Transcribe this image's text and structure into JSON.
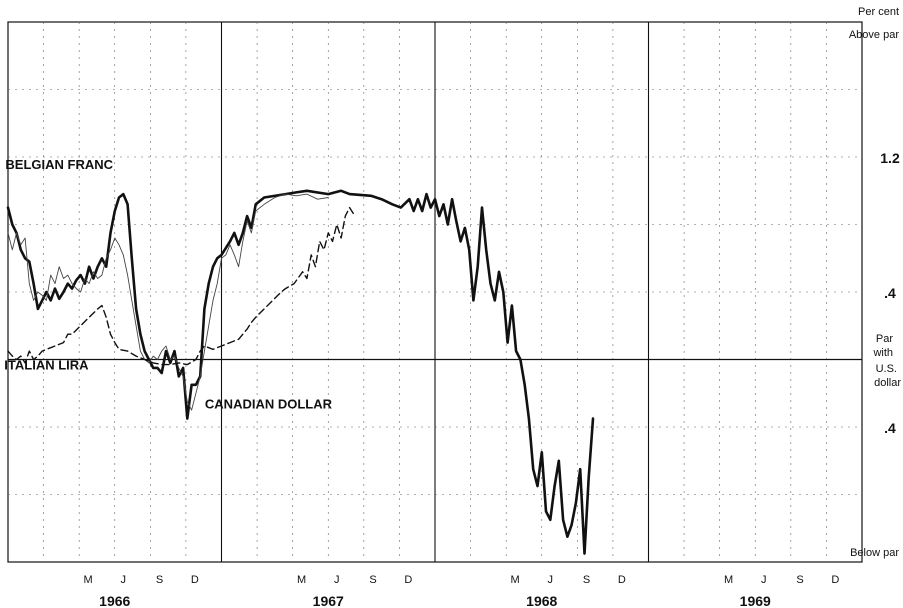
{
  "chart_data": {
    "type": "line",
    "ylabel_top": "Per cent",
    "above_label": "Above par",
    "below_label": "Below par",
    "par_label": [
      "Par",
      "with",
      "U.S.",
      "dollar"
    ],
    "y_tick_labels": [
      {
        "value": 1.2,
        "label": "1.2"
      },
      {
        "value": 0.4,
        "label": ".4"
      },
      {
        "value": -0.4,
        "label": ".4"
      }
    ],
    "ylim": [
      -1.2,
      2.0
    ],
    "xlim": [
      1966.0,
      1970.0
    ],
    "x_tick_labels": [
      {
        "x": 1966.375,
        "label": "M"
      },
      {
        "x": 1966.54,
        "label": "J"
      },
      {
        "x": 1966.71,
        "label": "S"
      },
      {
        "x": 1966.875,
        "label": "D"
      },
      {
        "x": 1967.375,
        "label": "M"
      },
      {
        "x": 1967.54,
        "label": "J"
      },
      {
        "x": 1967.71,
        "label": "S"
      },
      {
        "x": 1967.875,
        "label": "D"
      },
      {
        "x": 1968.375,
        "label": "M"
      },
      {
        "x": 1968.54,
        "label": "J"
      },
      {
        "x": 1968.71,
        "label": "S"
      },
      {
        "x": 1968.875,
        "label": "D"
      },
      {
        "x": 1969.375,
        "label": "M"
      },
      {
        "x": 1969.54,
        "label": "J"
      },
      {
        "x": 1969.71,
        "label": "S"
      },
      {
        "x": 1969.875,
        "label": "D"
      }
    ],
    "years": [
      {
        "x": 1966.5,
        "label": "1966"
      },
      {
        "x": 1967.5,
        "label": "1967"
      },
      {
        "x": 1968.5,
        "label": "1968"
      },
      {
        "x": 1969.5,
        "label": "1969"
      }
    ],
    "grid": true,
    "series": [
      {
        "name": "BELGIAN FRANC",
        "style": "thick",
        "color": "#111111",
        "label_at": {
          "x": 1966.24,
          "y": 1.13
        },
        "points": [
          [
            1966.0,
            0.9
          ],
          [
            1966.02,
            0.8
          ],
          [
            1966.04,
            0.75
          ],
          [
            1966.06,
            0.65
          ],
          [
            1966.08,
            0.6
          ],
          [
            1966.1,
            0.58
          ],
          [
            1966.12,
            0.45
          ],
          [
            1966.14,
            0.3
          ],
          [
            1966.16,
            0.35
          ],
          [
            1966.18,
            0.4
          ],
          [
            1966.2,
            0.35
          ],
          [
            1966.22,
            0.42
          ],
          [
            1966.24,
            0.36
          ],
          [
            1966.26,
            0.4
          ],
          [
            1966.28,
            0.45
          ],
          [
            1966.3,
            0.42
          ],
          [
            1966.32,
            0.47
          ],
          [
            1966.34,
            0.5
          ],
          [
            1966.36,
            0.45
          ],
          [
            1966.38,
            0.55
          ],
          [
            1966.4,
            0.48
          ],
          [
            1966.42,
            0.55
          ],
          [
            1966.44,
            0.6
          ],
          [
            1966.46,
            0.55
          ],
          [
            1966.48,
            0.75
          ],
          [
            1966.5,
            0.88
          ],
          [
            1966.52,
            0.96
          ],
          [
            1966.54,
            0.98
          ],
          [
            1966.56,
            0.92
          ],
          [
            1966.58,
            0.6
          ],
          [
            1966.6,
            0.3
          ],
          [
            1966.62,
            0.15
          ],
          [
            1966.64,
            0.05
          ],
          [
            1966.66,
            0.0
          ],
          [
            1966.68,
            -0.05
          ],
          [
            1966.7,
            -0.05
          ],
          [
            1966.72,
            -0.08
          ],
          [
            1966.74,
            0.05
          ],
          [
            1966.76,
            -0.02
          ],
          [
            1966.78,
            0.05
          ],
          [
            1966.8,
            -0.1
          ],
          [
            1966.82,
            -0.05
          ],
          [
            1966.84,
            -0.35
          ],
          [
            1966.86,
            -0.15
          ],
          [
            1966.88,
            -0.15
          ],
          [
            1966.9,
            -0.1
          ],
          [
            1966.92,
            0.3
          ],
          [
            1966.94,
            0.45
          ],
          [
            1966.96,
            0.55
          ],
          [
            1966.98,
            0.6
          ],
          [
            1967.0,
            0.62
          ],
          [
            1967.04,
            0.7
          ],
          [
            1967.06,
            0.75
          ],
          [
            1967.08,
            0.68
          ],
          [
            1967.1,
            0.75
          ],
          [
            1967.12,
            0.85
          ],
          [
            1967.14,
            0.78
          ],
          [
            1967.16,
            0.92
          ],
          [
            1967.2,
            0.96
          ],
          [
            1967.3,
            0.98
          ],
          [
            1967.35,
            0.99
          ],
          [
            1967.4,
            1.0
          ],
          [
            1967.5,
            0.98
          ],
          [
            1967.56,
            1.0
          ],
          [
            1967.6,
            0.98
          ],
          [
            1967.7,
            0.97
          ],
          [
            1967.75,
            0.95
          ],
          [
            1967.8,
            0.92
          ],
          [
            1967.84,
            0.9
          ],
          [
            1967.88,
            0.95
          ],
          [
            1967.9,
            0.88
          ],
          [
            1967.92,
            0.95
          ],
          [
            1967.94,
            0.88
          ],
          [
            1967.96,
            0.98
          ],
          [
            1967.98,
            0.9
          ],
          [
            1968.0,
            0.95
          ],
          [
            1968.02,
            0.85
          ],
          [
            1968.04,
            0.92
          ],
          [
            1968.06,
            0.8
          ],
          [
            1968.08,
            0.95
          ],
          [
            1968.1,
            0.82
          ],
          [
            1968.12,
            0.7
          ],
          [
            1968.14,
            0.78
          ],
          [
            1968.16,
            0.65
          ],
          [
            1968.18,
            0.35
          ],
          [
            1968.2,
            0.55
          ],
          [
            1968.22,
            0.9
          ],
          [
            1968.24,
            0.65
          ],
          [
            1968.26,
            0.45
          ],
          [
            1968.28,
            0.35
          ],
          [
            1968.3,
            0.52
          ],
          [
            1968.32,
            0.4
          ],
          [
            1968.34,
            0.1
          ],
          [
            1968.36,
            0.32
          ],
          [
            1968.38,
            0.05
          ],
          [
            1968.4,
            0.0
          ],
          [
            1968.42,
            -0.15
          ],
          [
            1968.44,
            -0.35
          ],
          [
            1968.46,
            -0.65
          ],
          [
            1968.48,
            -0.75
          ],
          [
            1968.5,
            -0.55
          ],
          [
            1968.52,
            -0.9
          ],
          [
            1968.54,
            -0.95
          ],
          [
            1968.56,
            -0.75
          ],
          [
            1968.58,
            -0.6
          ],
          [
            1968.6,
            -0.95
          ],
          [
            1968.62,
            -1.05
          ],
          [
            1968.64,
            -0.98
          ],
          [
            1968.66,
            -0.85
          ],
          [
            1968.68,
            -0.65
          ],
          [
            1968.7,
            -1.15
          ],
          [
            1968.72,
            -0.7
          ],
          [
            1968.74,
            -0.35
          ]
        ]
      },
      {
        "name": "ITALIAN LIRA",
        "style": "thin",
        "color": "#444444",
        "label_at": {
          "x": 1966.18,
          "y": -0.06
        },
        "points": [
          [
            1966.0,
            0.75
          ],
          [
            1966.02,
            0.65
          ],
          [
            1966.04,
            0.75
          ],
          [
            1966.06,
            0.68
          ],
          [
            1966.08,
            0.72
          ],
          [
            1966.1,
            0.45
          ],
          [
            1966.12,
            0.35
          ],
          [
            1966.14,
            0.4
          ],
          [
            1966.16,
            0.38
          ],
          [
            1966.18,
            0.35
          ],
          [
            1966.2,
            0.5
          ],
          [
            1966.22,
            0.45
          ],
          [
            1966.24,
            0.55
          ],
          [
            1966.26,
            0.48
          ],
          [
            1966.28,
            0.5
          ],
          [
            1966.3,
            0.45
          ],
          [
            1966.32,
            0.42
          ],
          [
            1966.34,
            0.4
          ],
          [
            1966.36,
            0.48
          ],
          [
            1966.38,
            0.45
          ],
          [
            1966.4,
            0.52
          ],
          [
            1966.42,
            0.48
          ],
          [
            1966.44,
            0.5
          ],
          [
            1966.46,
            0.6
          ],
          [
            1966.48,
            0.65
          ],
          [
            1966.5,
            0.72
          ],
          [
            1966.52,
            0.68
          ],
          [
            1966.54,
            0.62
          ],
          [
            1966.56,
            0.5
          ],
          [
            1966.58,
            0.35
          ],
          [
            1966.6,
            0.2
          ],
          [
            1966.62,
            0.05
          ],
          [
            1966.64,
            0.0
          ],
          [
            1966.66,
            -0.02
          ],
          [
            1966.68,
            0.02
          ],
          [
            1966.7,
            0.0
          ],
          [
            1966.72,
            0.05
          ],
          [
            1966.74,
            0.08
          ],
          [
            1966.76,
            0.0
          ],
          [
            1966.78,
            0.02
          ],
          [
            1966.8,
            -0.05
          ],
          [
            1966.82,
            -0.1
          ],
          [
            1966.84,
            -0.25
          ],
          [
            1966.86,
            -0.3
          ],
          [
            1966.88,
            -0.2
          ],
          [
            1966.9,
            -0.1
          ],
          [
            1966.92,
            0.05
          ],
          [
            1966.94,
            0.2
          ],
          [
            1966.96,
            0.35
          ],
          [
            1966.98,
            0.45
          ],
          [
            1967.0,
            0.6
          ],
          [
            1967.02,
            0.62
          ],
          [
            1967.04,
            0.68
          ],
          [
            1967.06,
            0.62
          ],
          [
            1967.08,
            0.55
          ],
          [
            1967.1,
            0.7
          ],
          [
            1967.12,
            0.82
          ],
          [
            1967.14,
            0.75
          ],
          [
            1967.16,
            0.88
          ],
          [
            1967.2,
            0.92
          ],
          [
            1967.25,
            0.96
          ],
          [
            1967.3,
            0.98
          ],
          [
            1967.35,
            0.97
          ],
          [
            1967.4,
            0.98
          ],
          [
            1967.45,
            0.95
          ],
          [
            1967.5,
            0.96
          ]
        ]
      },
      {
        "name": "CANADIAN DOLLAR",
        "style": "dashed",
        "color": "#111111",
        "label_at": {
          "x": 1967.22,
          "y": -0.29
        },
        "points": [
          [
            1966.0,
            0.05
          ],
          [
            1966.02,
            0.02
          ],
          [
            1966.04,
            0.0
          ],
          [
            1966.06,
            0.02
          ],
          [
            1966.08,
            -0.02
          ],
          [
            1966.1,
            0.05
          ],
          [
            1966.12,
            0.0
          ],
          [
            1966.14,
            0.02
          ],
          [
            1966.16,
            0.05
          ],
          [
            1966.18,
            0.06
          ],
          [
            1966.22,
            0.08
          ],
          [
            1966.26,
            0.1
          ],
          [
            1966.28,
            0.15
          ],
          [
            1966.3,
            0.15
          ],
          [
            1966.34,
            0.2
          ],
          [
            1966.38,
            0.25
          ],
          [
            1966.42,
            0.3
          ],
          [
            1966.44,
            0.32
          ],
          [
            1966.46,
            0.25
          ],
          [
            1966.48,
            0.15
          ],
          [
            1966.5,
            0.1
          ],
          [
            1966.52,
            0.06
          ],
          [
            1966.56,
            0.05
          ],
          [
            1966.6,
            0.02
          ],
          [
            1966.64,
            0.0
          ],
          [
            1966.68,
            -0.02
          ],
          [
            1966.72,
            -0.03
          ],
          [
            1966.76,
            -0.03
          ],
          [
            1966.8,
            -0.02
          ],
          [
            1966.84,
            -0.03
          ],
          [
            1966.88,
            0.0
          ],
          [
            1966.9,
            0.05
          ],
          [
            1966.92,
            0.08
          ],
          [
            1966.96,
            0.06
          ],
          [
            1967.0,
            0.08
          ],
          [
            1967.04,
            0.1
          ],
          [
            1967.08,
            0.12
          ],
          [
            1967.1,
            0.15
          ],
          [
            1967.12,
            0.18
          ],
          [
            1967.14,
            0.22
          ],
          [
            1967.16,
            0.25
          ],
          [
            1967.2,
            0.3
          ],
          [
            1967.24,
            0.35
          ],
          [
            1967.28,
            0.4
          ],
          [
            1967.3,
            0.42
          ],
          [
            1967.34,
            0.45
          ],
          [
            1967.38,
            0.52
          ],
          [
            1967.4,
            0.48
          ],
          [
            1967.42,
            0.62
          ],
          [
            1967.44,
            0.55
          ],
          [
            1967.46,
            0.7
          ],
          [
            1967.48,
            0.65
          ],
          [
            1967.5,
            0.75
          ],
          [
            1967.52,
            0.7
          ],
          [
            1967.54,
            0.8
          ],
          [
            1967.56,
            0.72
          ],
          [
            1967.58,
            0.85
          ],
          [
            1967.6,
            0.9
          ],
          [
            1967.62,
            0.86
          ]
        ]
      }
    ]
  }
}
